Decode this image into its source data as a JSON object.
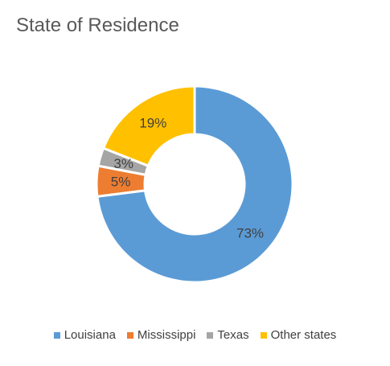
{
  "chart_data": {
    "type": "pie",
    "title": "State of Residence",
    "slices": [
      {
        "label": "Louisiana",
        "value": 73,
        "display": "73%",
        "color": "#5B9BD5"
      },
      {
        "label": "Mississippi",
        "value": 5,
        "display": "5%",
        "color": "#ED7D31"
      },
      {
        "label": "Texas",
        "value": 3,
        "display": "3%",
        "color": "#A5A5A5"
      },
      {
        "label": "Other states",
        "value": 19,
        "display": "19%",
        "color": "#FFC000"
      }
    ],
    "donut": true,
    "legend_position": "bottom"
  }
}
